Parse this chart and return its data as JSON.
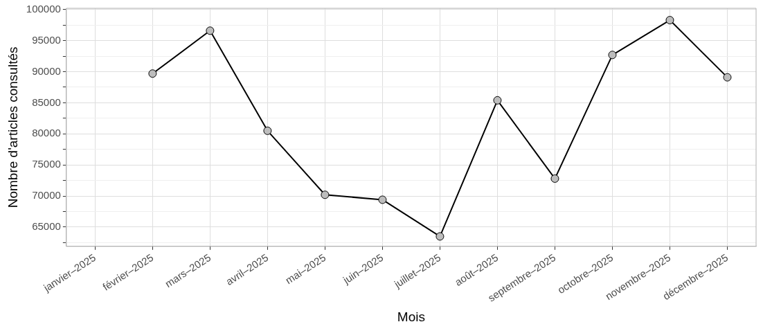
{
  "chart_data": {
    "type": "line",
    "xlabel": "Mois",
    "ylabel": "Nombre d'articles consultés",
    "categories": [
      "janvier–2025",
      "février–2025",
      "mars–2025",
      "avril–2025",
      "mai–2025",
      "juin–2025",
      "juillet–2025",
      "août–2025",
      "septembre–2025",
      "octobre–2025",
      "novembre–2025",
      "décembre–2025"
    ],
    "series": [
      {
        "color": "#000000",
        "values": [
          null,
          89700,
          96600,
          80500,
          70200,
          69400,
          63500,
          85400,
          72800,
          92700,
          98300,
          89100
        ]
      }
    ],
    "ylim": [
      61900,
      100200
    ],
    "yticks": [
      {
        "value": 62500,
        "label": null
      },
      65000,
      {
        "value": 67500,
        "label": null
      },
      70000,
      {
        "value": 72500,
        "label": null
      },
      75000,
      {
        "value": 77500,
        "label": null
      },
      80000,
      {
        "value": 82500,
        "label": null
      },
      85000,
      {
        "value": 87500,
        "label": null
      },
      90000,
      {
        "value": 92500,
        "label": null
      },
      95000,
      {
        "value": 97500,
        "label": null
      },
      100000
    ],
    "grid": true,
    "legend": false,
    "marker": "circle",
    "line_style": "solid"
  }
}
